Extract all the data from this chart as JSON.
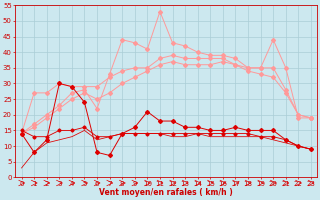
{
  "x": [
    0,
    1,
    2,
    3,
    4,
    5,
    6,
    7,
    8,
    9,
    10,
    11,
    12,
    13,
    14,
    15,
    16,
    17,
    18,
    19,
    20,
    21,
    22,
    23
  ],
  "line_dark1": [
    14,
    8,
    12,
    30,
    29,
    24,
    8,
    7,
    14,
    16,
    21,
    18,
    18,
    16,
    16,
    15,
    15,
    16,
    15,
    15,
    15,
    12,
    10,
    9
  ],
  "line_dark2": [
    3,
    8,
    11,
    12,
    13,
    15,
    12,
    13,
    14,
    14,
    14,
    14,
    13,
    13,
    14,
    13,
    13,
    13,
    13,
    13,
    12,
    11,
    10,
    9
  ],
  "line_dark3": [
    15,
    13,
    13,
    15,
    15,
    16,
    13,
    13,
    14,
    14,
    14,
    14,
    14,
    14,
    14,
    14,
    14,
    14,
    14,
    13,
    13,
    12,
    10,
    9
  ],
  "line_light1": [
    14,
    27,
    27,
    30,
    29,
    29,
    29,
    32,
    34,
    35,
    35,
    38,
    39,
    38,
    38,
    38,
    38,
    36,
    35,
    35,
    35,
    28,
    20,
    19
  ],
  "line_light2": [
    14,
    17,
    20,
    23,
    27,
    28,
    22,
    33,
    44,
    43,
    41,
    53,
    43,
    42,
    40,
    39,
    39,
    38,
    35,
    35,
    44,
    35,
    19,
    19
  ],
  "line_light3": [
    14,
    16,
    19,
    22,
    25,
    27,
    25,
    27,
    30,
    32,
    34,
    36,
    37,
    36,
    36,
    36,
    37,
    36,
    34,
    33,
    32,
    27,
    20,
    19
  ],
  "bg_color": "#cce8ef",
  "grid_color": "#aacdd6",
  "dark_color": "#dd0000",
  "light_color": "#ff9999",
  "xlabel": "Vent moyen/en rafales ( km/h )",
  "ylim": [
    0,
    55
  ],
  "xlim": [
    -0.5,
    23.5
  ],
  "yticks": [
    0,
    5,
    10,
    15,
    20,
    25,
    30,
    35,
    40,
    45,
    50,
    55
  ],
  "xticks": [
    0,
    1,
    2,
    3,
    4,
    5,
    6,
    7,
    8,
    9,
    10,
    11,
    12,
    13,
    14,
    15,
    16,
    17,
    18,
    19,
    20,
    21,
    22,
    23
  ],
  "tick_color": "#cc0000",
  "lw": 0.7,
  "ms": 2.0
}
